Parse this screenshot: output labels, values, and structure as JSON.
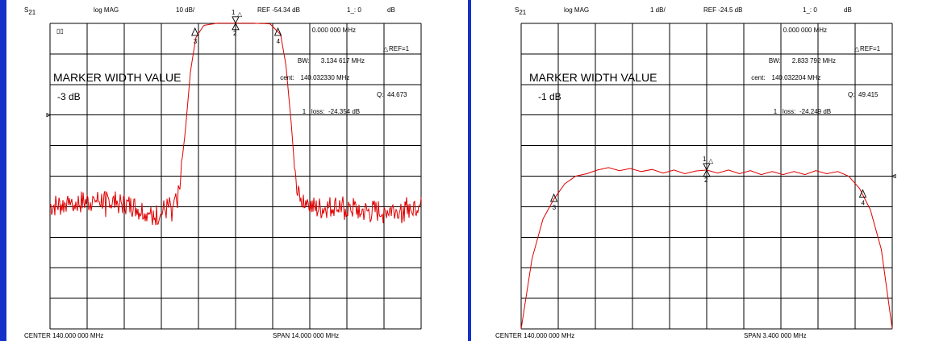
{
  "chart_data": [
    {
      "type": "line",
      "header": {
        "param": "S",
        "param_sub": "21",
        "format": "log MAG",
        "scale": "10 dB/",
        "ref": "REF -54.34 dB",
        "marker_label": "1_: 0",
        "marker_unit": "dB"
      },
      "marker_freq": "0.000 000 MHz",
      "ref_label": "REF=1",
      "icon_label": "▯▯",
      "bw_label": "BW:",
      "bw_value": "3.134 617 MHz",
      "cent_label": "cent:",
      "cent_value": "140.032330 MHz",
      "q_label": "Q:",
      "q_value": "44.673",
      "loss_label": "1_ loss:",
      "loss_value": "-24.354 dB",
      "mwv_title": "MARKER WIDTH VALUE",
      "mwv_level": "-3 dB",
      "footer": {
        "center": "CENTER  140.000 000 MHz",
        "span": "SPAN   14.000 000 MHz"
      },
      "center_mhz": 140.0,
      "span_mhz": 14.0,
      "ref_db": -54.34,
      "db_per_div": 10,
      "ref_marker_div": 3.0,
      "passband_level_db": -24.3,
      "markers": [
        {
          "num": "1",
          "freq_mhz": 140.0,
          "delta": true
        },
        {
          "num": "2",
          "freq_mhz": 140.0,
          "below": true
        },
        {
          "num": "3",
          "freq_mhz": 138.47
        },
        {
          "num": "4",
          "freq_mhz": 141.6
        }
      ],
      "trace_mhz_db": [
        [
          133.0,
          -84
        ],
        [
          134.0,
          -83
        ],
        [
          135.0,
          -82
        ],
        [
          136.0,
          -84
        ],
        [
          137.0,
          -87
        ],
        [
          137.8,
          -83
        ],
        [
          138.1,
          -60
        ],
        [
          138.3,
          -40
        ],
        [
          138.5,
          -29
        ],
        [
          138.8,
          -25
        ],
        [
          139.3,
          -24.3
        ],
        [
          140.0,
          -24.3
        ],
        [
          140.7,
          -24.3
        ],
        [
          141.3,
          -24.5
        ],
        [
          141.7,
          -28
        ],
        [
          141.9,
          -38
        ],
        [
          142.1,
          -57
        ],
        [
          142.3,
          -80
        ],
        [
          143.0,
          -85
        ],
        [
          144.0,
          -84
        ],
        [
          145.0,
          -86
        ],
        [
          147.0,
          -84
        ]
      ]
    },
    {
      "type": "line",
      "header": {
        "param": "S",
        "param_sub": "21",
        "format": "log MAG",
        "scale": "1 dB/",
        "ref": "REF -24.5 dB",
        "marker_label": "1_: 0",
        "marker_unit": "dB"
      },
      "marker_freq": "0.000 000 MHz",
      "ref_label": "REF=1",
      "bw_label": "BW:",
      "bw_value": "2.833 792 MHz",
      "cent_label": "cent:",
      "cent_value": "140.032204 MHz",
      "q_label": "Q:",
      "q_value": "49.415",
      "loss_label": "1_ loss:",
      "loss_value": "-24.249 dB",
      "mwv_title": "MARKER WIDTH VALUE",
      "mwv_level": "-1 dB",
      "footer": {
        "center": "CENTER  140.000 000 MHz",
        "span": "SPAN   3.400 000 MHz"
      },
      "center_mhz": 140.0,
      "span_mhz": 3.4,
      "ref_db": -24.5,
      "db_per_div": 1,
      "ref_marker_div": 5.0,
      "markers": [
        {
          "num": "1",
          "freq_mhz": 140.0,
          "delta": true
        },
        {
          "num": "2",
          "freq_mhz": 140.0,
          "below": true
        },
        {
          "num": "3",
          "freq_mhz": 138.6
        },
        {
          "num": "4",
          "freq_mhz": 141.43
        }
      ],
      "trace_mhz_db": [
        [
          138.3,
          -29.5
        ],
        [
          138.4,
          -27.2
        ],
        [
          138.5,
          -25.9
        ],
        [
          138.6,
          -25.25
        ],
        [
          138.7,
          -24.75
        ],
        [
          138.8,
          -24.5
        ],
        [
          138.9,
          -24.42
        ],
        [
          139.0,
          -24.3
        ],
        [
          139.1,
          -24.22
        ],
        [
          139.2,
          -24.32
        ],
        [
          139.3,
          -24.25
        ],
        [
          139.4,
          -24.35
        ],
        [
          139.5,
          -24.28
        ],
        [
          139.6,
          -24.4
        ],
        [
          139.7,
          -24.3
        ],
        [
          139.8,
          -24.42
        ],
        [
          139.9,
          -24.33
        ],
        [
          140.0,
          -24.3
        ],
        [
          140.1,
          -24.4
        ],
        [
          140.2,
          -24.3
        ],
        [
          140.3,
          -24.42
        ],
        [
          140.4,
          -24.32
        ],
        [
          140.5,
          -24.45
        ],
        [
          140.6,
          -24.35
        ],
        [
          140.7,
          -24.45
        ],
        [
          140.8,
          -24.35
        ],
        [
          140.9,
          -24.45
        ],
        [
          141.0,
          -24.32
        ],
        [
          141.1,
          -24.42
        ],
        [
          141.2,
          -24.35
        ],
        [
          141.3,
          -24.5
        ],
        [
          141.4,
          -24.9
        ],
        [
          141.5,
          -25.6
        ],
        [
          141.6,
          -26.9
        ],
        [
          141.7,
          -29.5
        ]
      ]
    }
  ]
}
